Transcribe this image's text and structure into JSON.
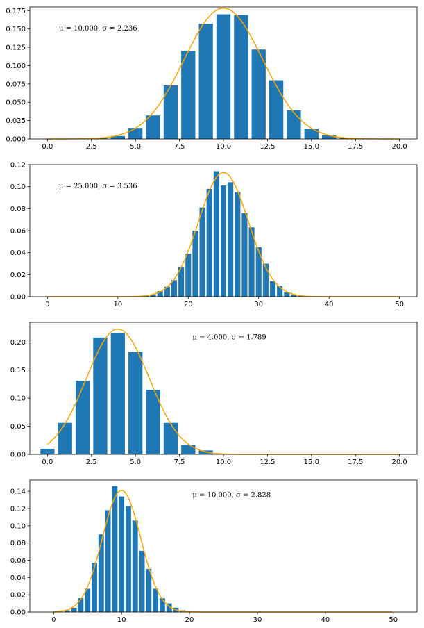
{
  "chart_data": [
    {
      "type": "bar",
      "annotation": "μ = 10.000, σ = 2.236",
      "annotation_pos": "upper-left",
      "bar_color": "#1f77b4",
      "curve_color": "#ffa500",
      "xlim": [
        -1,
        21
      ],
      "ylim": [
        0,
        0.18
      ],
      "x_ticks": [
        0,
        2.5,
        5,
        7.5,
        10,
        12.5,
        15,
        17.5,
        20
      ],
      "x_tick_labels": [
        "0.0",
        "2.5",
        "5.0",
        "7.5",
        "10.0",
        "12.5",
        "15.0",
        "17.5",
        "20.0"
      ],
      "y_ticks": [
        0,
        0.025,
        0.05,
        0.075,
        0.1,
        0.125,
        0.15,
        0.175
      ],
      "y_tick_labels": [
        "0.000",
        "0.025",
        "0.050",
        "0.075",
        "0.100",
        "0.125",
        "0.150",
        "0.175"
      ],
      "bar_width": 0.8,
      "x": [
        0,
        1,
        2,
        3,
        4,
        5,
        6,
        7,
        8,
        9,
        10,
        11,
        12,
        13,
        14,
        15,
        16,
        17,
        18,
        19,
        20
      ],
      "values": [
        0,
        0,
        0.0002,
        0.001,
        0.004,
        0.015,
        0.032,
        0.073,
        0.12,
        0.157,
        0.17,
        0.169,
        0.122,
        0.08,
        0.039,
        0.014,
        0.005,
        0.001,
        0,
        0,
        0
      ],
      "curve": {
        "mu": 10.0,
        "sigma": 2.236,
        "x_range": [
          0,
          20
        ]
      }
    },
    {
      "type": "bar",
      "annotation": "μ = 25.000, σ = 3.536",
      "annotation_pos": "upper-left",
      "bar_color": "#1f77b4",
      "curve_color": "#ffa500",
      "xlim": [
        -2.5,
        52.5
      ],
      "ylim": [
        0,
        0.12
      ],
      "x_ticks": [
        0,
        10,
        20,
        30,
        40,
        50
      ],
      "x_tick_labels": [
        "0",
        "10",
        "20",
        "30",
        "40",
        "50"
      ],
      "y_ticks": [
        0,
        0.02,
        0.04,
        0.06,
        0.08,
        0.1,
        0.12
      ],
      "y_tick_labels": [
        "0.00",
        "0.02",
        "0.04",
        "0.06",
        "0.08",
        "0.10",
        "0.12"
      ],
      "bar_width": 0.8,
      "x": [
        13,
        14,
        15,
        16,
        17,
        18,
        19,
        20,
        21,
        22,
        23,
        24,
        25,
        26,
        27,
        28,
        29,
        30,
        31,
        32,
        33,
        34,
        35,
        36
      ],
      "values": [
        0.0005,
        0.001,
        0.002,
        0.005,
        0.009,
        0.015,
        0.027,
        0.039,
        0.06,
        0.081,
        0.098,
        0.114,
        0.101,
        0.104,
        0.095,
        0.076,
        0.063,
        0.045,
        0.03,
        0.014,
        0.01,
        0.004,
        0.002,
        0.001
      ],
      "curve": {
        "mu": 25.0,
        "sigma": 3.536,
        "x_range": [
          0,
          50
        ]
      }
    },
    {
      "type": "bar",
      "annotation": "μ = 4.000, σ = 1.789",
      "annotation_pos": "upper-center",
      "bar_color": "#1f77b4",
      "curve_color": "#ffa500",
      "xlim": [
        -1,
        21
      ],
      "ylim": [
        0,
        0.235
      ],
      "x_ticks": [
        0,
        2.5,
        5,
        7.5,
        10,
        12.5,
        15,
        17.5,
        20
      ],
      "x_tick_labels": [
        "0.0",
        "2.5",
        "5.0",
        "7.5",
        "10.0",
        "12.5",
        "15.0",
        "17.5",
        "20.0"
      ],
      "y_ticks": [
        0,
        0.05,
        0.1,
        0.15,
        0.2
      ],
      "y_tick_labels": [
        "0.00",
        "0.05",
        "0.10",
        "0.15",
        "0.20"
      ],
      "bar_width": 0.8,
      "x": [
        0,
        1,
        2,
        3,
        4,
        5,
        6,
        7,
        8,
        9,
        10,
        11,
        12
      ],
      "values": [
        0.01,
        0.056,
        0.131,
        0.208,
        0.216,
        0.182,
        0.115,
        0.056,
        0.017,
        0.007,
        0.001,
        0.0003,
        0.0001
      ],
      "curve": {
        "mu": 4.0,
        "sigma": 1.789,
        "x_range": [
          0,
          20
        ]
      }
    },
    {
      "type": "bar",
      "annotation": "μ = 10.000, σ = 2.828",
      "annotation_pos": "upper-center",
      "bar_color": "#1f77b4",
      "curve_color": "#ffa500",
      "xlim": [
        -3.5,
        53.5
      ],
      "ylim": [
        0,
        0.153
      ],
      "x_ticks": [
        0,
        10,
        20,
        30,
        40,
        50
      ],
      "x_tick_labels": [
        "0",
        "10",
        "20",
        "30",
        "40",
        "50"
      ],
      "y_ticks": [
        0,
        0.02,
        0.04,
        0.06,
        0.08,
        0.1,
        0.12,
        0.14
      ],
      "y_tick_labels": [
        "0.00",
        "0.02",
        "0.04",
        "0.06",
        "0.08",
        "0.10",
        "0.12",
        "0.14"
      ],
      "bar_width": 0.8,
      "x": [
        1,
        2,
        3,
        4,
        5,
        6,
        7,
        8,
        9,
        10,
        11,
        12,
        13,
        14,
        15,
        16,
        17,
        18,
        19
      ],
      "values": [
        0.0005,
        0.002,
        0.005,
        0.016,
        0.027,
        0.057,
        0.09,
        0.118,
        0.146,
        0.134,
        0.123,
        0.106,
        0.071,
        0.05,
        0.027,
        0.016,
        0.01,
        0.005,
        0.002
      ],
      "curve": {
        "mu": 10.0,
        "sigma": 2.828,
        "x_range": [
          0,
          50
        ]
      }
    }
  ]
}
